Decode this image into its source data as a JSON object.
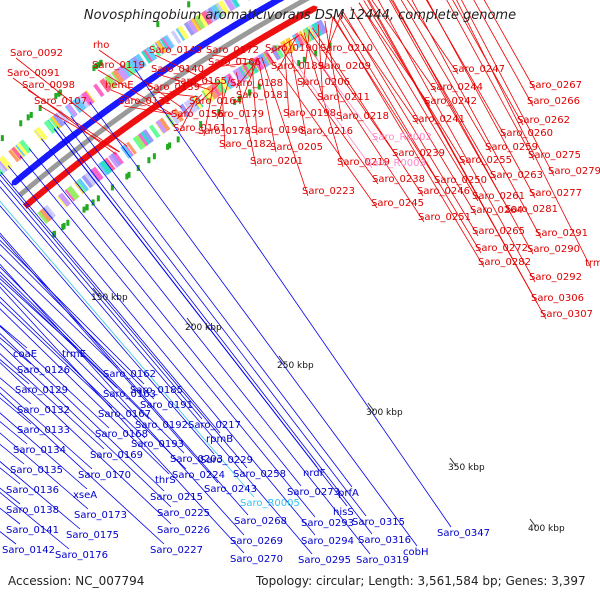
{
  "title": "Novosphingobium aromaticivorans DSM 12444, complete genome",
  "footer": {
    "accession": "Accession: NC_007794",
    "stats": "Topology: circular; Length: 3,561,584 bp; Genes: 3,397"
  },
  "colors": {
    "forward_gene": "#ee1111",
    "reverse_gene": "#1a1aff",
    "forward_label": "#dd0000",
    "reverse_label": "#0000cc",
    "rna_forward_label": "#ff88c8",
    "rna_reverse_label": "#33c3ee",
    "backbone": "#9a9a9a",
    "leader_line_forward": "#ee0000",
    "leader_line_reverse": "#0000ee"
  },
  "scale_labels": [
    "150 kbp",
    "200 kbp",
    "250 kbp",
    "300 kbp",
    "350 kbp",
    "400 kbp"
  ],
  "forward_labels": [
    "Saro_0092",
    "rho",
    "Saro_0143",
    "Saro_0172",
    "Saro_0190",
    "Saro_0210",
    "Saro_0091",
    "Saro_0119",
    "Saro_0140",
    "Saro_0166",
    "Saro_0189",
    "Saro_0209",
    "Saro_0098",
    "Saro_0139",
    "Saro_0165",
    "Saro_0188",
    "Saro_0206",
    "Saro_0107",
    "hemE",
    "Saro_0131",
    "Saro_0164",
    "Saro_0181",
    "Saro_0211",
    "Saro_0156",
    "Saro_0179",
    "Saro_0198",
    "Saro_0218",
    "Saro_0161",
    "Saro_0178",
    "Saro_0196",
    "Saro_0216",
    "Saro_0182",
    "Saro_0205",
    "Saro_0201",
    "Saro_0219",
    "Saro_0223",
    "Saro_0247",
    "Saro_0244",
    "Saro_0242",
    "Saro_0241",
    "Saro_0239",
    "Saro_0238",
    "Saro_0245",
    "Saro_0246",
    "Saro_0251",
    "Saro_0250",
    "Saro_0255",
    "Saro_0259",
    "Saro_0260",
    "Saro_0262",
    "Saro_0263",
    "Saro_0261",
    "Saro_0264",
    "Saro_0265",
    "Saro_0272",
    "Saro_0282",
    "Saro_0267",
    "Saro_0266",
    "Saro_0275",
    "Saro_0279",
    "Saro_0277",
    "Saro_0281",
    "Saro_0291",
    "Saro_0290",
    "trmB",
    "Saro_0292",
    "Saro_0306",
    "Saro_0307"
  ],
  "forward_rna_labels": [
    "Saro_R0002",
    "Saro_R0003"
  ],
  "reverse_labels": [
    "coaE",
    "trmE",
    "Saro_0126",
    "Saro_0129",
    "Saro_0132",
    "Saro_0133",
    "Saro_0134",
    "Saro_0135",
    "Saro_0136",
    "Saro_0138",
    "Saro_0141",
    "Saro_0142",
    "Saro_0162",
    "Saro_0163",
    "Saro_0167",
    "Saro_0168",
    "Saro_0169",
    "Saro_0170",
    "xseA",
    "Saro_0173",
    "Saro_0175",
    "Saro_0176",
    "Saro_0185",
    "Saro_0191",
    "Saro_0192",
    "Saro_0193",
    "thrS",
    "Saro_0203",
    "Saro_0215",
    "Saro_0225",
    "Saro_0226",
    "Saro_0227",
    "Saro_0217",
    "rpmB",
    "Saro_0229",
    "Saro_0224",
    "Saro_0243",
    "Saro_0258",
    "Saro_0268",
    "Saro_0269",
    "Saro_0270",
    "Saro_0273",
    "nrdF",
    "prfA",
    "hisS",
    "Saro_0293",
    "Saro_0294",
    "Saro_0295",
    "Saro_0315",
    "Saro_0316",
    "Saro_0319",
    "Saro_0347",
    "cobH"
  ],
  "reverse_rna_labels": [
    "Saro_R0005"
  ]
}
